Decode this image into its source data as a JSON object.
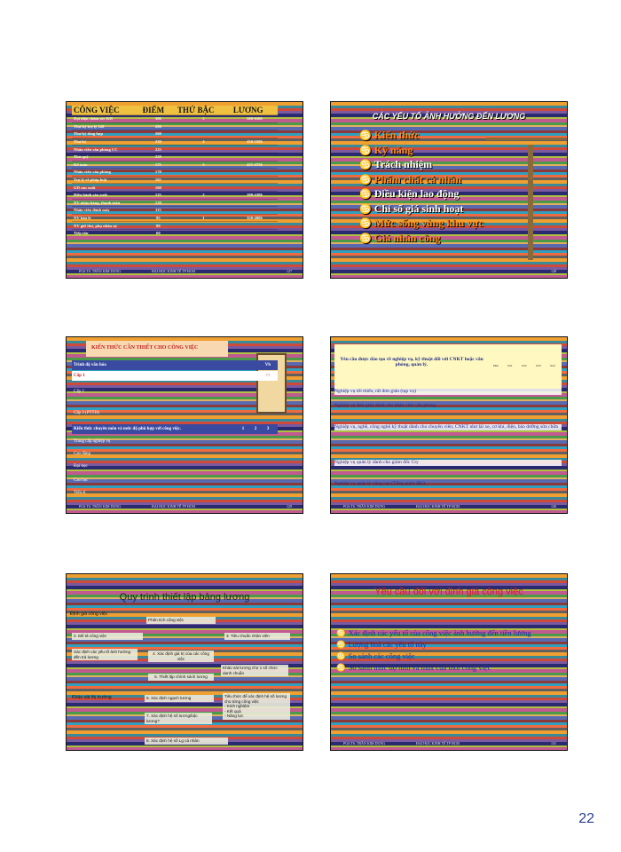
{
  "slide1": {
    "headers": [
      "CÔNG VIỆC",
      "ĐIỂM",
      "THỨ BẬC",
      "LƯƠNG"
    ],
    "rows": [
      [
        "Đại diện chăm sóc KH",
        "300",
        "5",
        "500-650$"
      ],
      [
        "Thư ký trợ lý GĐ",
        "280",
        "",
        ""
      ],
      [
        "Thư ký tổng hợp",
        "260",
        "",
        ""
      ],
      [
        "Thư ký",
        "230",
        "4",
        "450-550$"
      ],
      [
        "Nhân viên văn phòng CC",
        "225",
        "",
        ""
      ],
      [
        "Thủ quỹ",
        "220",
        "",
        ""
      ],
      [
        "Kế toán",
        "175",
        "3",
        "425-475$"
      ],
      [
        "Nhân viên văn phòng",
        "170",
        "",
        ""
      ],
      [
        "Trợ lý về pháp luật",
        "165",
        "",
        ""
      ],
      [
        "GĐ sản xuất",
        "160",
        "",
        ""
      ],
      [
        "Điều hành sản xuất",
        "125",
        "2",
        "390-430$"
      ],
      [
        "NV nhận hàng, thanh toán",
        "120",
        "",
        ""
      ],
      [
        "Nhân viên đánh máy",
        "115",
        "",
        ""
      ],
      [
        "NV bán lẻ",
        "95",
        "1",
        "350-400$"
      ],
      [
        "NV giữ thư, phụ nhân sự",
        "80",
        "",
        ""
      ],
      [
        "Tiếp tân",
        "60",
        "",
        ""
      ]
    ],
    "footer": [
      "PGS.TS. TRẦN KIM DUNG",
      "ĐẠI HỌC KINH TẾ TP HCM",
      "127"
    ]
  },
  "slide2": {
    "title": "CÁC YẾU TỐ ẢNH HƯỞNG ĐẾN LƯƠNG",
    "bullet": "♋",
    "items": [
      {
        "text": "Kiến thức",
        "color": "#ff8a1a"
      },
      {
        "text": "Kỹ năng",
        "color": "#ff8a1a"
      },
      {
        "text": "Trách nhiệm",
        "color": "#ffffff"
      },
      {
        "text": "Phẩm chất cá nhân",
        "color": "#ff8a1a"
      },
      {
        "text": "Điều kiện lao động",
        "color": "#ffffff"
      },
      {
        "text": "Chỉ số giá sinh hoạt",
        "color": "#ffffff"
      },
      {
        "text": "Mức sống vùng khu vực",
        "color": "#ff8a1a"
      },
      {
        "text": "Giá nhân công",
        "color": "#ff8a1a"
      }
    ],
    "page": "128"
  },
  "slide3": {
    "title": "KIẾN THỨC CẦN THIẾT CHO CÔNG VIỆC",
    "header_label": "Trình độ văn hóa",
    "header_vals": "Vb",
    "level1": "Cấp 1",
    "rows": [
      "Cấp 2",
      "Cấp 3 (PTTH)"
    ],
    "knowledge_label": "Kiến thức chuyên môn và mức độ phù hợp với công việc.",
    "knowledge_vals": [
      "1",
      "2",
      "3"
    ],
    "rows2": [
      "Trung cấp nghiệp vụ",
      "Cao đẳng",
      "Đại học",
      "Cao học",
      "Tiến sĩ"
    ],
    "footer": [
      "PGS.TS. TRẦN KIM DUNG",
      "ĐẠI HỌC KINH TẾ TP HCM",
      "129"
    ]
  },
  "slide4": {
    "header": "Yêu cầu được đào tạo về nghiệp vụ, kỹ thuật đối với CNKT hoặc văn phòng, quản lý.",
    "cols": [
      "Đnn",
      "Kt1",
      "Kt2",
      "Kt3",
      "Kt4"
    ],
    "items": [
      "Nghiệp vụ tối thiểu, rất đơn giản (tạp vụ)",
      "Nghiệp vụ đơn giản dành cho nhân viên văn phòng",
      "Nghiệp vụ, nghề, công nghệ kỹ thuật dành cho chuyên viên; CNKT như lái xe, cơ khí, điện, bảo dưỡng sửa chữa",
      "Nghiệp vụ quản lý dành cho giám đốc Cty",
      "Nghiệp vụ quản lý nâng cao (Tổng giám đốc)"
    ],
    "footer": [
      "PGS.TS. TRẦN KIM DUNG",
      "ĐẠI HỌC KINH TẾ TP HCM",
      "130"
    ]
  },
  "slide5": {
    "title": "Quy trình thiết lập bảng lương",
    "nodes": {
      "dinh_gia": "Định giá công việc",
      "phan_tich": "Phân tích công việc",
      "mo_ta": "2. Mô tả công việc",
      "tieu_chuan": "3. Tiêu chuẩn nhân viên",
      "xac_dinh_yeu_to": "Xác định các yếu tố ảnh hưởng đến trả lương",
      "xac_dinh_gia_tri": "4. Xác định giá trị của các công việc",
      "khao_sat_luong": "Khảo sát lương cho 1 số chức danh chuẩn",
      "thiet_lap": "5. Thiết lập chính sách lương",
      "khao_sat_tt": "Khảo sát thị trường",
      "xac_dinh_ngach": "6. Xác định ngạch lương",
      "tieu_thuc": "Tiêu thức để xác định hệ số lương cho từng công việc",
      "tieu_thuc_items": [
        "- Kinh nghiệm",
        "- Kết quả",
        "- Năng lực"
      ],
      "xac_dinh_he_so": "7. Xác định hệ số lương/bậc lương?",
      "xac_dinh_lg": "8. Xác định hệ số Lg cá nhân"
    }
  },
  "slide6": {
    "title": "Yêu cầu đối với định giá công việc",
    "bullet": "♋",
    "items": [
      "Xác định các yếu tố của công việc ảnh hưởng đến tiền lương",
      "Lượng hoá các yếu tố này",
      "So sánh các công việc",
      "So sánh mức độ min và max của mỗi công việc"
    ],
    "footer": [
      "PGS.TS. TRẦN KIM DUNG",
      "ĐẠI HỌC KINH TẾ TP HCM",
      "131"
    ]
  },
  "page_number": "22"
}
